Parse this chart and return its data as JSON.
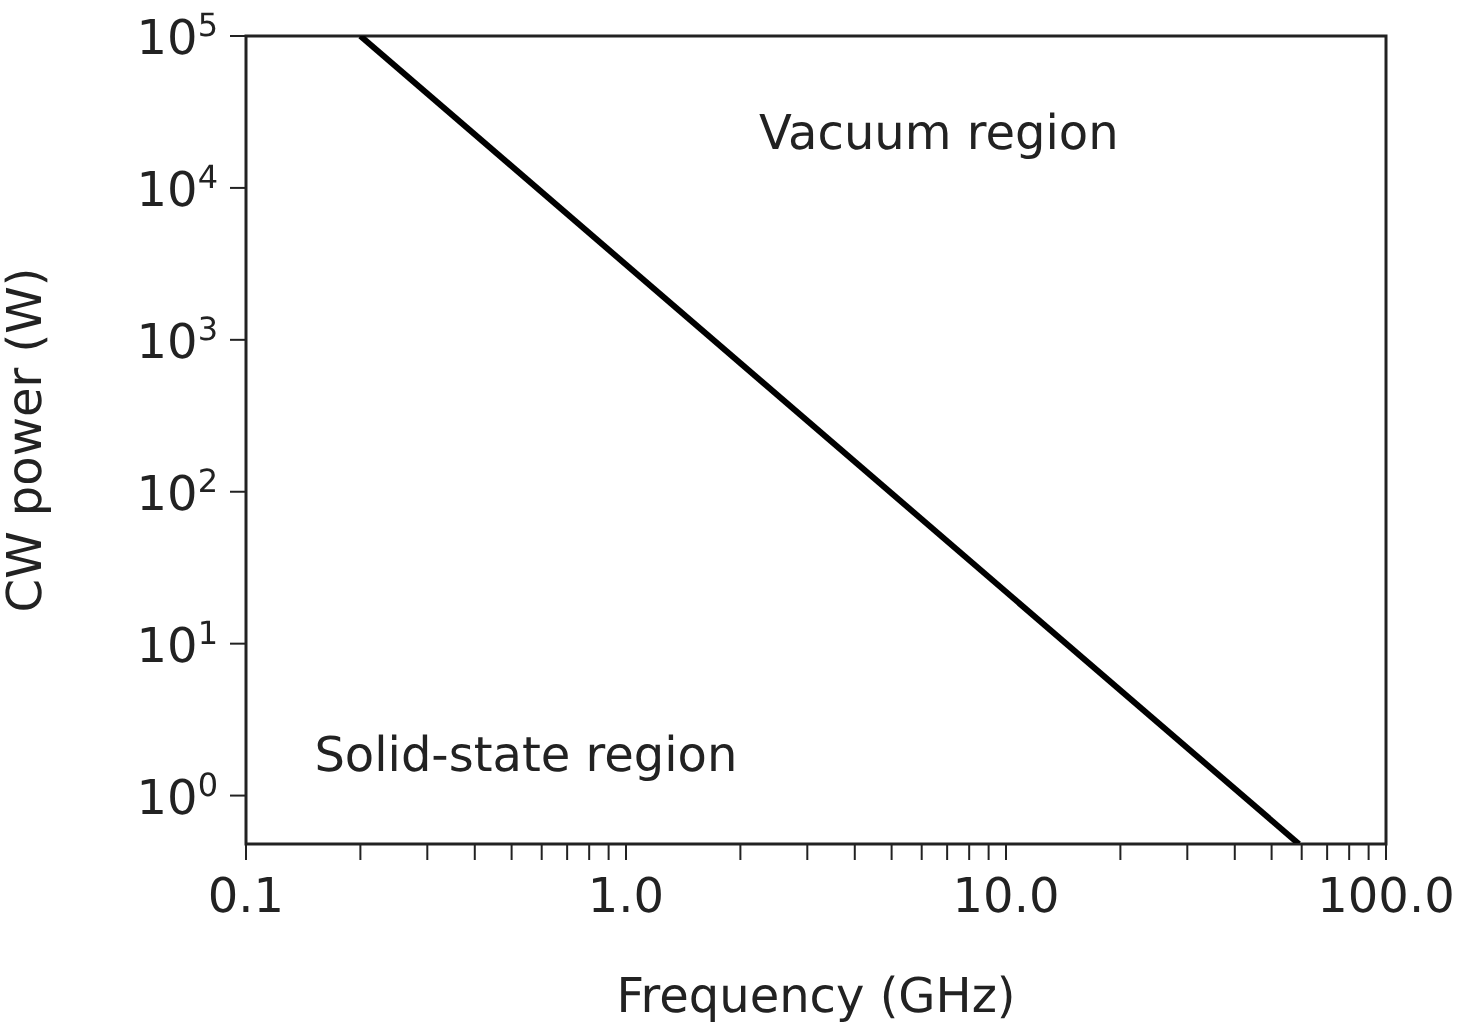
{
  "chart_data": {
    "type": "line",
    "xlabel": "Frequency (GHz)",
    "ylabel": "CW power (W)",
    "log": "xy",
    "marker": "none",
    "line_style": "solid",
    "x": [
      0.2,
      59
    ],
    "series": [
      {
        "color": "#000000",
        "values": [
          100000,
          0.48
        ]
      }
    ],
    "xlim": [
      0.1,
      100
    ],
    "ylim": [
      0.48,
      100000
    ],
    "xticks": [
      {
        "value": 0.1,
        "label": "0.1"
      },
      {
        "value": 0.2,
        "label": null
      },
      {
        "value": 0.3,
        "label": null
      },
      {
        "value": 0.4,
        "label": null
      },
      {
        "value": 0.5,
        "label": null
      },
      {
        "value": 0.6,
        "label": null
      },
      {
        "value": 0.7,
        "label": null
      },
      {
        "value": 0.8,
        "label": null
      },
      {
        "value": 0.9,
        "label": null
      },
      {
        "value": 1,
        "label": "1.0"
      },
      {
        "value": 2,
        "label": null
      },
      {
        "value": 3,
        "label": null
      },
      {
        "value": 4,
        "label": null
      },
      {
        "value": 5,
        "label": null
      },
      {
        "value": 6,
        "label": null
      },
      {
        "value": 7,
        "label": null
      },
      {
        "value": 8,
        "label": null
      },
      {
        "value": 9,
        "label": null
      },
      {
        "value": 10,
        "label": "10.0"
      },
      {
        "value": 20,
        "label": null
      },
      {
        "value": 30,
        "label": null
      },
      {
        "value": 40,
        "label": null
      },
      {
        "value": 50,
        "label": null
      },
      {
        "value": 60,
        "label": null
      },
      {
        "value": 70,
        "label": null
      },
      {
        "value": 80,
        "label": null
      },
      {
        "value": 90,
        "label": null
      },
      {
        "value": 100,
        "label": "100.0"
      }
    ],
    "yticks": [
      {
        "value": 1,
        "label": "10$^{0}$"
      },
      {
        "value": 10,
        "label": "10$^{1}$"
      },
      {
        "value": 100,
        "label": "10$^{2}$"
      },
      {
        "value": 1000,
        "label": "10$^{3}$"
      },
      {
        "value": 10000,
        "label": "10$^{4}$"
      },
      {
        "value": 100000,
        "label": "10$^{5}$"
      }
    ],
    "annotations": [
      "Vacuum region",
      "Solid-state region"
    ]
  }
}
